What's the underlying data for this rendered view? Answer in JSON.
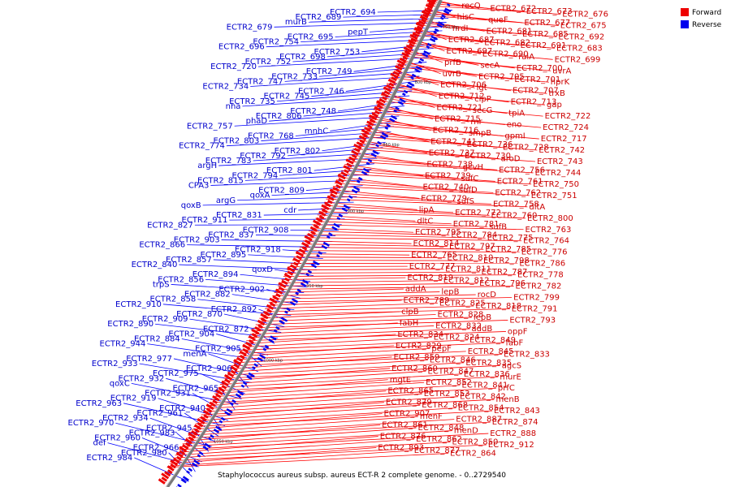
{
  "caption": "Staphylococcus aureus subsp. aureus ECT-R 2 complete genome. - 0..2729540",
  "legend": [
    {
      "label": "Forward",
      "color": "#ee0000"
    },
    {
      "label": "Reverse",
      "color": "#0000ee"
    }
  ],
  "ticks": [
    "750 kbp",
    "800 kbp",
    "850 kbp",
    "900 kbp",
    "950 kbp",
    "1000 kbp",
    "1050 kbp"
  ],
  "forward_labels": [
    "recQ",
    "ECTR2_672",
    "ECTR2_673",
    "ECTR2_676",
    "hisC",
    "queF",
    "ECTR2_677",
    "ECTR2_675",
    "nrdI",
    "ECTR2_681",
    "ECTR2_685",
    "ECTR2_692",
    "ECTR2_687",
    "ECTR2_682",
    "ECTR2_691",
    "ECTR2_683",
    "ECTR2_697",
    "ECTR2_690",
    "raiA",
    "ECTR2_699",
    "prfB",
    "secA",
    "ECTR2_700",
    "uvrA",
    "uvrB",
    "ECTR2_705",
    "ECTR2_701",
    "hprK",
    "ECTR2_706",
    "lgt",
    "ECTR2_707",
    "trxB",
    "ECTR2_712",
    "clpP",
    "ECTR2_713",
    "gap",
    "ECTR2_721",
    "secG",
    "tpiA",
    "ECTR2_722",
    "ECTR2_715",
    "rnr",
    "eno",
    "ECTR2_724",
    "ECTR2_716",
    "smpB",
    "gpmI",
    "ECTR2_717",
    "ECTR2_741",
    "ECTR2_736",
    "ECTR2_728",
    "ECTR2_742",
    "ECTR2_737",
    "ECTR2_730",
    "aroD",
    "ECTR2_743",
    "ECTR2_738",
    "gcvH",
    "ECTR2_756",
    "ECTR2_744",
    "ECTR2_739",
    "sufC",
    "ECTR2_761",
    "ECTR2_750",
    "ECTR2_740",
    "sufD",
    "ECTR2_762",
    "ECTR2_751",
    "ECTR2_779",
    "sufS",
    "ECTR2_758",
    "dltA",
    "lipA",
    "ECTR2_772",
    "ECTR2_760",
    "ECTR2_800",
    "dltC",
    "ECTR2_781",
    "sufB",
    "ECTR2_763",
    "ECTR2_795",
    "ECTR2_784",
    "ECTR2_775",
    "ECTR2_764",
    "ECTR2_814",
    "ECTR2_797",
    "ECTR2_785",
    "ECTR2_776",
    "ECTR2_765",
    "ECTR2_810",
    "ECTR2_798",
    "ECTR2_786",
    "ECTR2_777",
    "ECTR2_811",
    "ECTR2_787",
    "ECTR2_778",
    "ECTR2_819",
    "ECTR2_812",
    "ECTR2_796",
    "ECTR2_782",
    "addA",
    "lepB",
    "rocD",
    "ECTR2_799",
    "ECTR2_789",
    "ECTR2_825",
    "ECTR2_818",
    "ECTR2_791",
    "clpB",
    "ECTR2_828",
    "lepB",
    "ECTR2_793",
    "fabH",
    "ECTR2_832",
    "addB",
    "oppF",
    "ECTR2_834",
    "ECTR2_824",
    "ECTR2_849",
    "fabF",
    "ECTR2_829",
    "pepF",
    "ECTR2_845",
    "ECTR2_833",
    "ECTR2_859",
    "ECTR2_846",
    "ECTR2_835",
    "agcS",
    "ECTR2_860",
    "ECTR2_847",
    "ECTR2_836",
    "murE",
    "mgtE",
    "ECTR2_852",
    "ECTR2_841",
    "prfC",
    "ECTR2_865",
    "ECTR2_853",
    "ECTR2_842",
    "menB",
    "ECTR2_879",
    "ECTR2_868",
    "ECTR2_854",
    "ECTR2_843",
    "ECTR2_907",
    "menF",
    "ECTR2_887",
    "ECTR2_874",
    "ECTR2_861",
    "ECTR2_848",
    "menD",
    "ECTR2_888",
    "ECTR2_876",
    "ECTR2_862",
    "ECTR2_850",
    "ECTR2_912",
    "ECTR2_893",
    "ECTR2_877",
    "ECTR2_864"
  ],
  "reverse_labels": [
    "ECTR2_694",
    "ECTR2_689",
    "murB",
    "ECTR2_679",
    "pepT",
    "ECTR2_695",
    "ECTR2_754",
    "ECTR2_696",
    "ECTR2_753",
    "ECTR2_698",
    "ECTR2_752",
    "ECTR2_720",
    "ECTR2_749",
    "ECTR2_733",
    "ECTR2_747",
    "ECTR2_734",
    "ECTR2_746",
    "ECTR2_745",
    "ECTR2_735",
    "nha",
    "ECTR2_748",
    "ECTR2_806",
    "phaD",
    "ECTR2_757",
    "mnhC",
    "ECTR2_768",
    "ECTR2_803",
    "ECTR2_774",
    "ECTR2_802",
    "ECTR2_792",
    "ECTR2_783",
    "argH",
    "ECTR2_801",
    "ECTR2_794",
    "ECTR2_815",
    "CPA3",
    "ECTR2_809",
    "qoxA",
    "argG",
    "qoxB",
    "cdr",
    "ECTR2_831",
    "ECTR2_911",
    "ECTR2_827",
    "ECTR2_908",
    "ECTR2_837",
    "ECTR2_903",
    "ECTR2_866",
    "ECTR2_918",
    "ECTR2_895",
    "ECTR2_857",
    "ECTR2_840",
    "qoxD",
    "ECTR2_894",
    "ECTR2_856",
    "trpS",
    "ECTR2_902",
    "ECTR2_882",
    "ECTR2_858",
    "ECTR2_910",
    "ECTR2_892",
    "ECTR2_870",
    "ECTR2_909",
    "ECTR2_890",
    "ECTR2_872",
    "ECTR2_904",
    "ECTR2_884",
    "ECTR2_944",
    "ECTR2_905",
    "menA",
    "ECTR2_977",
    "ECTR2_933",
    "ECTR2_906",
    "ECTR2_975",
    "ECTR2_932",
    "qoxC",
    "ECTR2_965",
    "ECTR2_931",
    "ECTR2_919",
    "ECTR2_963",
    "ECTR2_940",
    "ECTR2_961",
    "ECTR2_934",
    "ECTR2_970",
    "ECTR2_945",
    "ECTR2_983",
    "ECTR2_960",
    "def",
    "ECTR2_966",
    "ECTR2_980",
    "ECTR2_984"
  ]
}
